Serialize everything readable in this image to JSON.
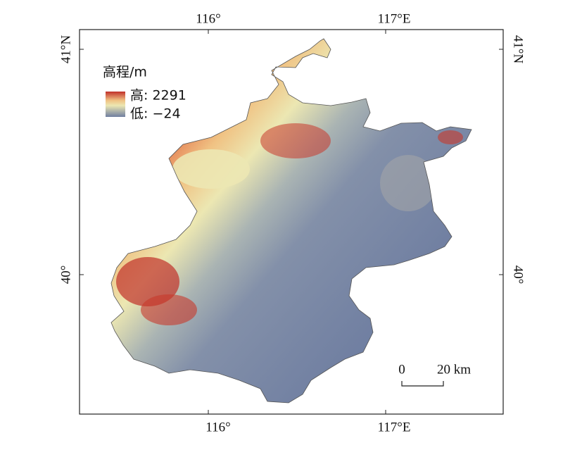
{
  "legend": {
    "title": "高程/m",
    "high": "高: 2291",
    "low": "低: −24"
  },
  "axes": {
    "top": [
      "116°",
      "117°E"
    ],
    "bottom": [
      "116°",
      "117°E"
    ],
    "left": [
      "41°N",
      "40°"
    ],
    "right": [
      "41°N",
      "40°"
    ]
  },
  "scale_bar": {
    "start": "0",
    "end": "20 km"
  }
}
